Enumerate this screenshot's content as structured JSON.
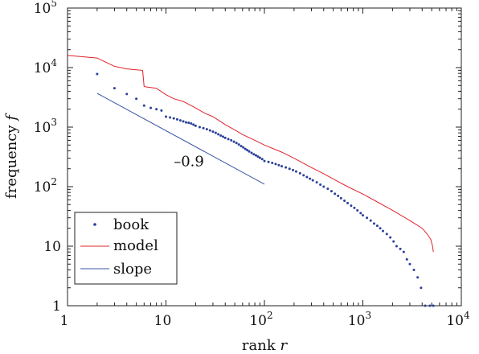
{
  "chart_data": {
    "type": "scatter",
    "x_scale": "log",
    "y_scale": "log",
    "xlim": [
      1,
      10000
    ],
    "ylim": [
      1,
      100000
    ],
    "x_ticks": [
      {
        "value": 1,
        "base": "1",
        "exp": ""
      },
      {
        "value": 10,
        "base": "10",
        "exp": ""
      },
      {
        "value": 100,
        "base": "10",
        "exp": "2"
      },
      {
        "value": 1000,
        "base": "10",
        "exp": "3"
      },
      {
        "value": 10000,
        "base": "10",
        "exp": "4"
      }
    ],
    "y_ticks": [
      {
        "value": 1,
        "base": "1",
        "exp": ""
      },
      {
        "value": 10,
        "base": "10",
        "exp": ""
      },
      {
        "value": 100,
        "base": "10",
        "exp": "2"
      },
      {
        "value": 1000,
        "base": "10",
        "exp": "3"
      },
      {
        "value": 10000,
        "base": "10",
        "exp": "4"
      },
      {
        "value": 100000,
        "base": "10",
        "exp": "5"
      }
    ],
    "xlabel": {
      "text": "rank ",
      "var": "r"
    },
    "ylabel": {
      "text": "frequency ",
      "var": "f"
    },
    "grid": false,
    "legend_position": "bottom-left",
    "annotation": {
      "text": "–0.9",
      "x": 12,
      "y": 220
    },
    "series": [
      {
        "name": "book",
        "kind": "points",
        "color": "#2b3f99",
        "points": [
          [
            2,
            7800
          ],
          [
            3,
            4500
          ],
          [
            4,
            3600
          ],
          [
            5,
            3000
          ],
          [
            6,
            2300
          ],
          [
            7,
            2100
          ],
          [
            8,
            2000
          ],
          [
            9,
            1900
          ],
          [
            10,
            1500
          ],
          [
            11,
            1450
          ],
          [
            12,
            1400
          ],
          [
            13,
            1350
          ],
          [
            14,
            1300
          ],
          [
            15,
            1250
          ],
          [
            16,
            1200
          ],
          [
            17,
            1180
          ],
          [
            18,
            1150
          ],
          [
            19,
            1100
          ],
          [
            20,
            1050
          ],
          [
            22,
            1000
          ],
          [
            24,
            960
          ],
          [
            26,
            920
          ],
          [
            28,
            880
          ],
          [
            30,
            840
          ],
          [
            32,
            800
          ],
          [
            34,
            760
          ],
          [
            36,
            720
          ],
          [
            38,
            690
          ],
          [
            40,
            660
          ],
          [
            43,
            630
          ],
          [
            46,
            600
          ],
          [
            49,
            570
          ],
          [
            52,
            540
          ],
          [
            55,
            510
          ],
          [
            58,
            480
          ],
          [
            61,
            455
          ],
          [
            64,
            430
          ],
          [
            67,
            410
          ],
          [
            70,
            390
          ],
          [
            74,
            370
          ],
          [
            78,
            350
          ],
          [
            82,
            335
          ],
          [
            86,
            320
          ],
          [
            90,
            305
          ],
          [
            95,
            290
          ],
          [
            100,
            270
          ],
          [
            110,
            260
          ],
          [
            120,
            250
          ],
          [
            130,
            240
          ],
          [
            140,
            230
          ],
          [
            150,
            220
          ],
          [
            165,
            210
          ],
          [
            180,
            200
          ],
          [
            195,
            190
          ],
          [
            210,
            180
          ],
          [
            230,
            168
          ],
          [
            250,
            155
          ],
          [
            270,
            145
          ],
          [
            290,
            136
          ],
          [
            310,
            128
          ],
          [
            340,
            118
          ],
          [
            370,
            108
          ],
          [
            400,
            100
          ],
          [
            440,
            92
          ],
          [
            480,
            84
          ],
          [
            520,
            76
          ],
          [
            560,
            70
          ],
          [
            600,
            64
          ],
          [
            650,
            58
          ],
          [
            700,
            53
          ],
          [
            760,
            48
          ],
          [
            820,
            44
          ],
          [
            880,
            40
          ],
          [
            950,
            36
          ],
          [
            1000,
            33
          ],
          [
            1100,
            30
          ],
          [
            1200,
            27
          ],
          [
            1300,
            24
          ],
          [
            1400,
            22
          ],
          [
            1500,
            20
          ],
          [
            1600,
            18
          ],
          [
            1750,
            16
          ],
          [
            1900,
            14
          ],
          [
            2050,
            12
          ],
          [
            2200,
            10
          ],
          [
            2400,
            9
          ],
          [
            2600,
            8
          ],
          [
            2800,
            6
          ],
          [
            3000,
            5
          ],
          [
            3300,
            4
          ],
          [
            3600,
            3
          ],
          [
            3900,
            2
          ],
          [
            4300,
            1
          ],
          [
            4800,
            1
          ],
          [
            5200,
            1
          ]
        ]
      },
      {
        "name": "model",
        "kind": "line",
        "color": "#e0242b",
        "points": [
          [
            1,
            16000
          ],
          [
            2,
            14500
          ],
          [
            3,
            10500
          ],
          [
            4,
            9500
          ],
          [
            5,
            9200
          ],
          [
            5.8,
            9000
          ],
          [
            6,
            4800
          ],
          [
            6.5,
            4700
          ],
          [
            8,
            4500
          ],
          [
            10,
            3500
          ],
          [
            12,
            3000
          ],
          [
            15,
            2700
          ],
          [
            20,
            2100
          ],
          [
            25,
            1700
          ],
          [
            30,
            1500
          ],
          [
            40,
            1100
          ],
          [
            50,
            900
          ],
          [
            60,
            750
          ],
          [
            80,
            600
          ],
          [
            100,
            500
          ],
          [
            150,
            380
          ],
          [
            200,
            300
          ],
          [
            300,
            210
          ],
          [
            400,
            165
          ],
          [
            500,
            135
          ],
          [
            700,
            100
          ],
          [
            1000,
            75
          ],
          [
            1500,
            52
          ],
          [
            2000,
            40
          ],
          [
            3000,
            27
          ],
          [
            4000,
            20
          ],
          [
            4500,
            16
          ],
          [
            4900,
            13
          ],
          [
            5100,
            10
          ],
          [
            5200,
            8
          ]
        ]
      },
      {
        "name": "slope",
        "kind": "line",
        "color": "#3b57a5",
        "points": [
          [
            2,
            3700
          ],
          [
            100,
            110
          ]
        ]
      }
    ]
  }
}
